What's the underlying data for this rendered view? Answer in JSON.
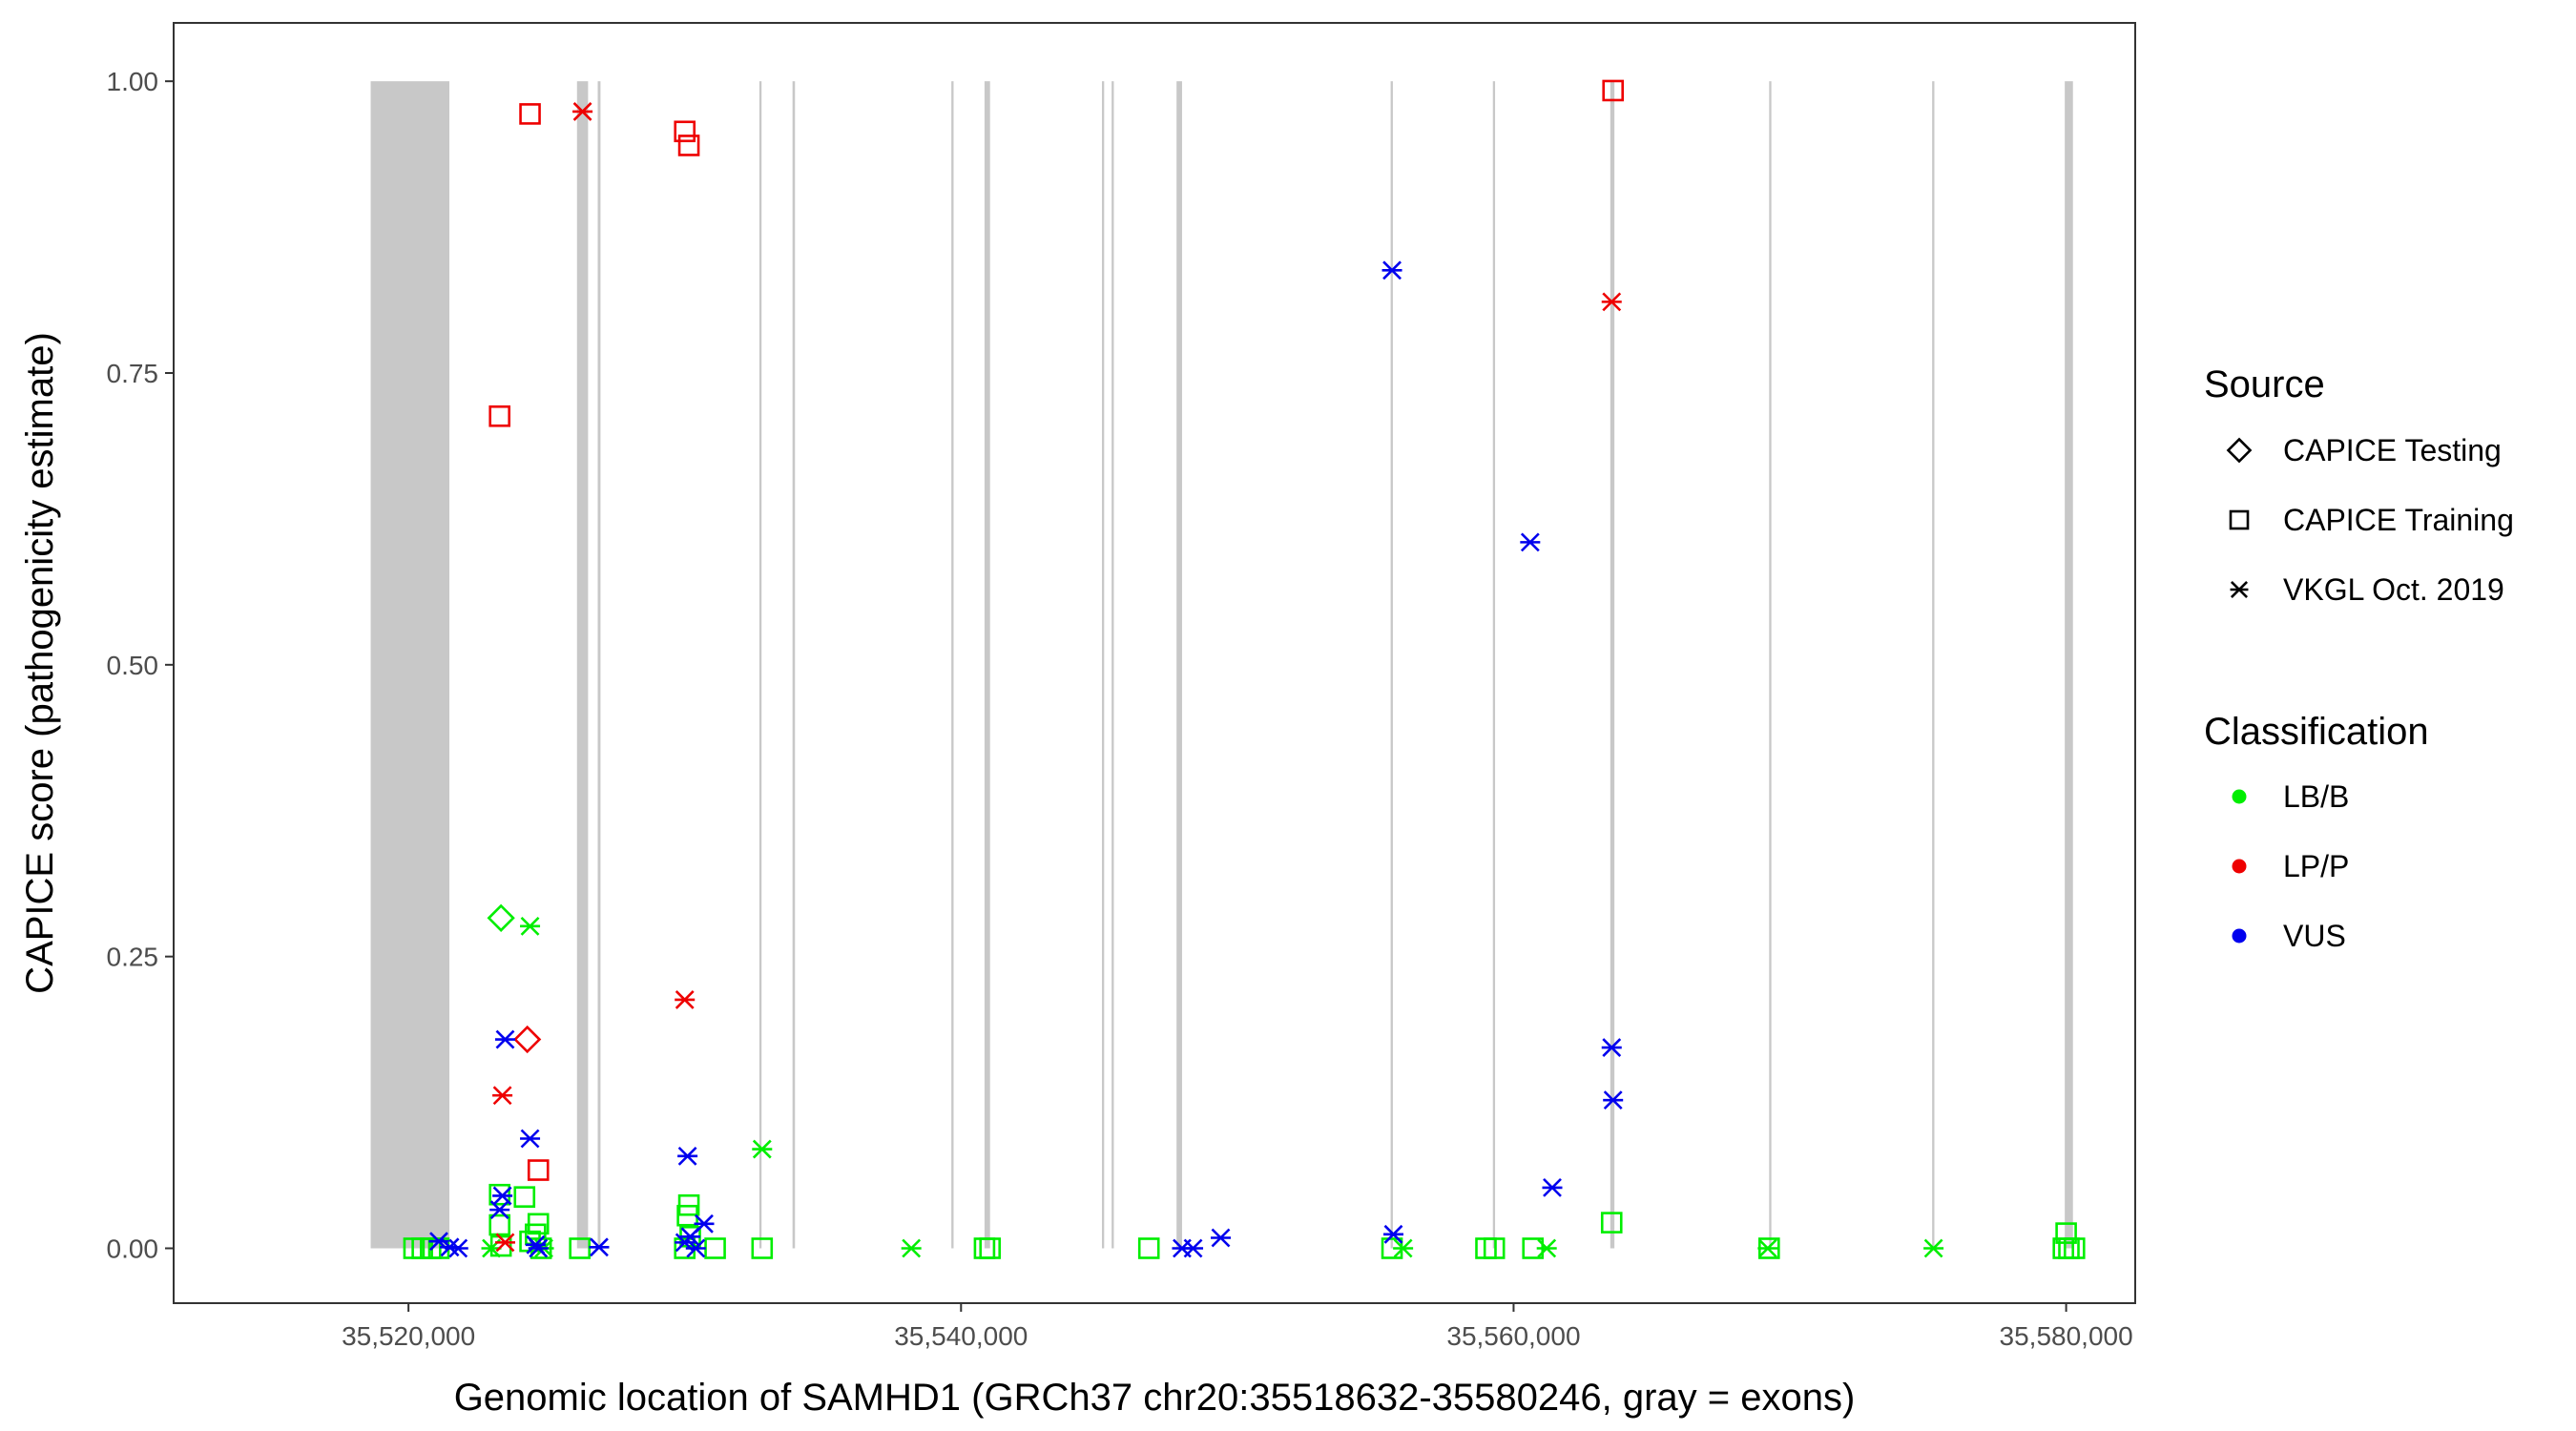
{
  "chart_data": {
    "type": "scatter",
    "xlabel": "Genomic location of SAMHD1 (GRCh37 chr20:35518632-35580246, gray = exons)",
    "ylabel": "CAPICE score (pathogenicity estimate)",
    "xlim": [
      35511500,
      35582500
    ],
    "ylim": [
      -0.047,
      1.05
    ],
    "x_ticks": [
      35520000,
      35540000,
      35560000,
      35580000
    ],
    "x_tick_labels": [
      "35,520,000",
      "35,540,000",
      "35,560,000",
      "35,580,000"
    ],
    "y_ticks": [
      0,
      0.25,
      0.5,
      0.75,
      1
    ],
    "y_tick_labels": [
      "0.00",
      "0.25",
      "0.50",
      "0.75",
      "1.00"
    ],
    "grid": false,
    "exon_color": "#c8c8c8",
    "exons": [
      [
        35518632,
        35521480
      ],
      [
        35526100,
        35526500
      ],
      [
        35526850,
        35526950
      ],
      [
        35532700,
        35532780
      ],
      [
        35533900,
        35533990
      ],
      [
        35539650,
        35539730
      ],
      [
        35540850,
        35541050
      ],
      [
        35545100,
        35545180
      ],
      [
        35545450,
        35545530
      ],
      [
        35547800,
        35548000
      ],
      [
        35555550,
        35555630
      ],
      [
        35559250,
        35559330
      ],
      [
        35563500,
        35563650
      ],
      [
        35569250,
        35569330
      ],
      [
        35575150,
        35575230
      ],
      [
        35579950,
        35580246
      ]
    ],
    "legend": {
      "source_title": "Source",
      "classification_title": "Classification",
      "placement": "right"
    },
    "sources": [
      {
        "name": "CAPICE Testing",
        "shape": "diamond"
      },
      {
        "name": "CAPICE Training",
        "shape": "square"
      },
      {
        "name": "VKGL Oct. 2019",
        "shape": "asterisk"
      }
    ],
    "classes": [
      {
        "name": "LB/B",
        "color": "#00ee00"
      },
      {
        "name": "LP/P",
        "color": "#ee0000"
      },
      {
        "name": "VUS",
        "color": "#0000ee"
      }
    ],
    "series": [
      {
        "source": "CAPICE Testing",
        "class": "LB/B",
        "points": [
          [
            35523350,
            0.283
          ]
        ]
      },
      {
        "source": "CAPICE Testing",
        "class": "LP/P",
        "points": [
          [
            35524300,
            0.179
          ]
        ]
      },
      {
        "source": "CAPICE Training",
        "class": "LB/B",
        "points": [
          [
            35520200,
            0
          ],
          [
            35520500,
            0
          ],
          [
            35520800,
            0
          ],
          [
            35521100,
            0
          ],
          [
            35523300,
            0.046
          ],
          [
            35523300,
            0.02
          ],
          [
            35523350,
            0.002
          ],
          [
            35524200,
            0.044
          ],
          [
            35524700,
            0.021
          ],
          [
            35524600,
            0.012
          ],
          [
            35524400,
            0.006
          ],
          [
            35524800,
            0
          ],
          [
            35526200,
            0
          ],
          [
            35530150,
            0.037
          ],
          [
            35530100,
            0.028
          ],
          [
            35530200,
            0.01
          ],
          [
            35530000,
            0
          ],
          [
            35531100,
            0
          ],
          [
            35532800,
            0
          ],
          [
            35540850,
            0
          ],
          [
            35541050,
            0
          ],
          [
            35546800,
            0
          ],
          [
            35555600,
            0
          ],
          [
            35559000,
            0
          ],
          [
            35559300,
            0
          ],
          [
            35560700,
            0
          ],
          [
            35563550,
            0.022
          ],
          [
            35569250,
            0
          ],
          [
            35580000,
            0.013
          ],
          [
            35579900,
            0
          ],
          [
            35580100,
            0
          ],
          [
            35580300,
            0
          ]
        ]
      },
      {
        "source": "CAPICE Training",
        "class": "LP/P",
        "points": [
          [
            35523300,
            0.713
          ],
          [
            35524400,
            0.972
          ],
          [
            35524700,
            0.067
          ],
          [
            35530000,
            0.957
          ],
          [
            35530150,
            0.945
          ],
          [
            35563600,
            0.992
          ]
        ]
      },
      {
        "source": "VKGL Oct. 2019",
        "class": "LB/B",
        "points": [
          [
            35524400,
            0.276
          ],
          [
            35532800,
            0.085
          ],
          [
            35523000,
            0
          ],
          [
            35524900,
            0
          ],
          [
            35538200,
            0
          ],
          [
            35556000,
            0
          ],
          [
            35561200,
            0
          ],
          [
            35569200,
            0
          ],
          [
            35575200,
            0
          ]
        ]
      },
      {
        "source": "VKGL Oct. 2019",
        "class": "LP/P",
        "points": [
          [
            35526300,
            0.974
          ],
          [
            35530000,
            0.213
          ],
          [
            35523400,
            0.131
          ],
          [
            35523500,
            0.005
          ],
          [
            35563550,
            0.811
          ]
        ]
      },
      {
        "source": "VKGL Oct. 2019",
        "class": "VUS",
        "points": [
          [
            35523500,
            0.179
          ],
          [
            35524400,
            0.094
          ],
          [
            35523400,
            0.045
          ],
          [
            35523300,
            0.033
          ],
          [
            35524600,
            0.003
          ],
          [
            35524700,
            0
          ],
          [
            35521100,
            0.006
          ],
          [
            35521500,
            0.001
          ],
          [
            35521800,
            0
          ],
          [
            35526900,
            0.001
          ],
          [
            35530100,
            0.079
          ],
          [
            35530700,
            0.021
          ],
          [
            35530200,
            0.01
          ],
          [
            35530000,
            0.005
          ],
          [
            35530400,
            0
          ],
          [
            35548000,
            0
          ],
          [
            35548400,
            0
          ],
          [
            35549400,
            0.009
          ],
          [
            35555600,
            0.838
          ],
          [
            35555650,
            0.012
          ],
          [
            35560600,
            0.605
          ],
          [
            35563550,
            0.172
          ],
          [
            35563600,
            0.127
          ],
          [
            35561400,
            0.052
          ]
        ]
      }
    ]
  }
}
